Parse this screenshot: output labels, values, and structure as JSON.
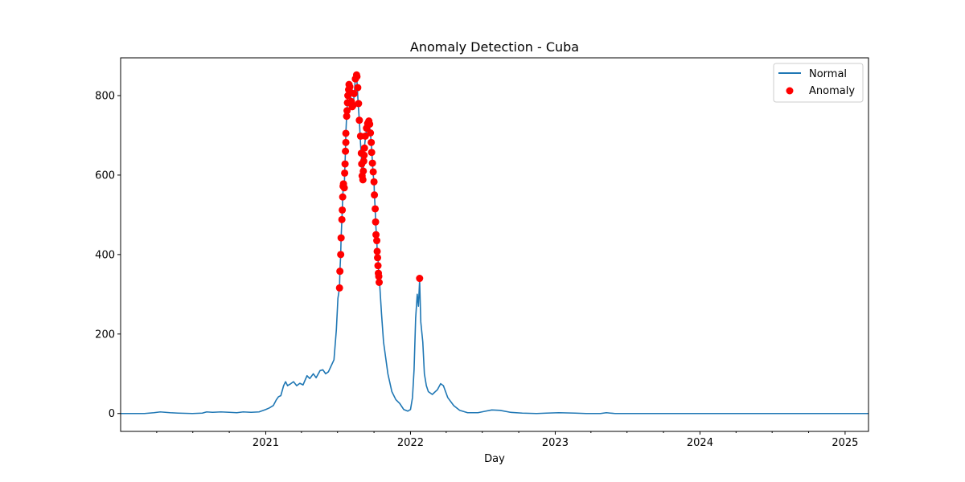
{
  "chart_data": {
    "type": "line",
    "title": "Anomaly Detection - Cuba",
    "xlabel": "Day",
    "ylabel": "",
    "xlim": [
      "2020-01-01",
      "2025-03-01"
    ],
    "ylim": [
      -45,
      895
    ],
    "x_ticks": [
      {
        "date": "2021-01-01",
        "label": "2021"
      },
      {
        "date": "2022-01-01",
        "label": "2022"
      },
      {
        "date": "2023-01-01",
        "label": "2023"
      },
      {
        "date": "2024-01-01",
        "label": "2024"
      },
      {
        "date": "2025-01-01",
        "label": "2025"
      }
    ],
    "x_minor_ticks": [
      "2020-04-01",
      "2020-07-01",
      "2020-10-01",
      "2021-04-01",
      "2021-07-01",
      "2021-10-01",
      "2022-04-01",
      "2022-07-01",
      "2022-10-01",
      "2023-04-01",
      "2023-07-01",
      "2023-10-01",
      "2024-04-01",
      "2024-07-01",
      "2024-10-01"
    ],
    "y_ticks": [
      0,
      200,
      400,
      600,
      800
    ],
    "legend": {
      "position": "top-right",
      "entries": [
        "Normal",
        "Anomaly"
      ]
    },
    "colors": {
      "normal": "#1f77b4",
      "anomaly": "#ff0000"
    },
    "series": [
      {
        "name": "Normal",
        "kind": "line",
        "points": [
          [
            "2020-01-01",
            0
          ],
          [
            "2020-03-01",
            0
          ],
          [
            "2020-03-25",
            2
          ],
          [
            "2020-04-10",
            4
          ],
          [
            "2020-05-05",
            2
          ],
          [
            "2020-05-25",
            1
          ],
          [
            "2020-06-30",
            0
          ],
          [
            "2020-07-25",
            1
          ],
          [
            "2020-08-05",
            4
          ],
          [
            "2020-08-20",
            3
          ],
          [
            "2020-09-10",
            4
          ],
          [
            "2020-10-01",
            3
          ],
          [
            "2020-10-20",
            2
          ],
          [
            "2020-11-05",
            4
          ],
          [
            "2020-11-25",
            3
          ],
          [
            "2020-12-15",
            4
          ],
          [
            "2021-01-01",
            10
          ],
          [
            "2021-01-10",
            14
          ],
          [
            "2021-01-20",
            20
          ],
          [
            "2021-01-28",
            35
          ],
          [
            "2021-02-02",
            42
          ],
          [
            "2021-02-08",
            45
          ],
          [
            "2021-02-15",
            70
          ],
          [
            "2021-02-20",
            80
          ],
          [
            "2021-02-25",
            70
          ],
          [
            "2021-03-05",
            75
          ],
          [
            "2021-03-12",
            80
          ],
          [
            "2021-03-20",
            70
          ],
          [
            "2021-03-28",
            76
          ],
          [
            "2021-04-05",
            72
          ],
          [
            "2021-04-15",
            95
          ],
          [
            "2021-04-22",
            88
          ],
          [
            "2021-05-01",
            100
          ],
          [
            "2021-05-08",
            90
          ],
          [
            "2021-05-18",
            108
          ],
          [
            "2021-05-25",
            110
          ],
          [
            "2021-06-01",
            100
          ],
          [
            "2021-06-08",
            105
          ],
          [
            "2021-06-15",
            120
          ],
          [
            "2021-06-22",
            135
          ],
          [
            "2021-06-28",
            210
          ],
          [
            "2021-07-02",
            290
          ],
          [
            "2021-07-06",
            316
          ],
          [
            "2021-07-07",
            358
          ],
          [
            "2021-07-09",
            400
          ],
          [
            "2021-07-10",
            442
          ],
          [
            "2021-07-12",
            488
          ],
          [
            "2021-07-13",
            512
          ],
          [
            "2021-07-14",
            545
          ],
          [
            "2021-07-16",
            578
          ],
          [
            "2021-07-18",
            565
          ],
          [
            "2021-07-19",
            605
          ],
          [
            "2021-07-21",
            660
          ],
          [
            "2021-07-22",
            705
          ],
          [
            "2021-07-24",
            750
          ],
          [
            "2021-07-27",
            800
          ],
          [
            "2021-07-30",
            828
          ],
          [
            "2021-08-02",
            815
          ],
          [
            "2021-08-05",
            780
          ],
          [
            "2021-08-08",
            770
          ],
          [
            "2021-08-12",
            800
          ],
          [
            "2021-08-15",
            845
          ],
          [
            "2021-08-18",
            852
          ],
          [
            "2021-08-20",
            820
          ],
          [
            "2021-08-22",
            780
          ],
          [
            "2021-08-25",
            738
          ],
          [
            "2021-08-28",
            680
          ],
          [
            "2021-08-31",
            630
          ],
          [
            "2021-09-01",
            600
          ],
          [
            "2021-09-03",
            588
          ],
          [
            "2021-09-05",
            630
          ],
          [
            "2021-09-07",
            672
          ],
          [
            "2021-09-10",
            700
          ],
          [
            "2021-09-13",
            720
          ],
          [
            "2021-09-16",
            735
          ],
          [
            "2021-09-19",
            730
          ],
          [
            "2021-09-22",
            705
          ],
          [
            "2021-09-24",
            680
          ],
          [
            "2021-09-26",
            650
          ],
          [
            "2021-09-27",
            630
          ],
          [
            "2021-09-29",
            600
          ],
          [
            "2021-10-01",
            585
          ],
          [
            "2021-10-02",
            550
          ],
          [
            "2021-10-04",
            515
          ],
          [
            "2021-10-05",
            482
          ],
          [
            "2021-10-07",
            450
          ],
          [
            "2021-10-08",
            435
          ],
          [
            "2021-10-09",
            410
          ],
          [
            "2021-10-11",
            395
          ],
          [
            "2021-10-12",
            375
          ],
          [
            "2021-10-13",
            355
          ],
          [
            "2021-10-15",
            330
          ],
          [
            "2021-10-20",
            250
          ],
          [
            "2021-10-25",
            180
          ],
          [
            "2021-11-05",
            100
          ],
          [
            "2021-11-15",
            55
          ],
          [
            "2021-11-25",
            35
          ],
          [
            "2021-12-05",
            25
          ],
          [
            "2021-12-15",
            10
          ],
          [
            "2021-12-25",
            6
          ],
          [
            "2022-01-01",
            10
          ],
          [
            "2022-01-06",
            40
          ],
          [
            "2022-01-10",
            110
          ],
          [
            "2022-01-14",
            240
          ],
          [
            "2022-01-18",
            300
          ],
          [
            "2022-01-21",
            270
          ],
          [
            "2022-01-24",
            335
          ],
          [
            "2022-01-27",
            230
          ],
          [
            "2022-02-01",
            180
          ],
          [
            "2022-02-05",
            100
          ],
          [
            "2022-02-10",
            70
          ],
          [
            "2022-02-15",
            55
          ],
          [
            "2022-02-25",
            48
          ],
          [
            "2022-03-10",
            60
          ],
          [
            "2022-03-18",
            75
          ],
          [
            "2022-03-25",
            70
          ],
          [
            "2022-04-05",
            40
          ],
          [
            "2022-04-20",
            20
          ],
          [
            "2022-05-05",
            8
          ],
          [
            "2022-05-25",
            2
          ],
          [
            "2022-06-20",
            2
          ],
          [
            "2022-07-10",
            6
          ],
          [
            "2022-07-25",
            9
          ],
          [
            "2022-08-15",
            8
          ],
          [
            "2022-09-10",
            3
          ],
          [
            "2022-10-10",
            1
          ],
          [
            "2022-11-15",
            0
          ],
          [
            "2022-12-10",
            1
          ],
          [
            "2023-01-10",
            2
          ],
          [
            "2023-02-20",
            1
          ],
          [
            "2023-03-20",
            0
          ],
          [
            "2023-04-25",
            0
          ],
          [
            "2023-05-10",
            2
          ],
          [
            "2023-05-20",
            1
          ],
          [
            "2023-06-01",
            0
          ],
          [
            "2025-03-01",
            0
          ]
        ]
      },
      {
        "name": "Anomaly",
        "kind": "scatter",
        "points": [
          [
            "2021-07-06",
            316
          ],
          [
            "2021-07-07",
            358
          ],
          [
            "2021-07-09",
            400
          ],
          [
            "2021-07-10",
            442
          ],
          [
            "2021-07-12",
            488
          ],
          [
            "2021-07-13",
            512
          ],
          [
            "2021-07-14",
            545
          ],
          [
            "2021-07-15",
            572
          ],
          [
            "2021-07-16",
            578
          ],
          [
            "2021-07-18",
            568
          ],
          [
            "2021-07-19",
            605
          ],
          [
            "2021-07-20",
            628
          ],
          [
            "2021-07-21",
            660
          ],
          [
            "2021-07-22",
            682
          ],
          [
            "2021-07-22",
            705
          ],
          [
            "2021-07-24",
            748
          ],
          [
            "2021-07-25",
            762
          ],
          [
            "2021-07-26",
            782
          ],
          [
            "2021-07-27",
            800
          ],
          [
            "2021-07-29",
            815
          ],
          [
            "2021-07-30",
            828
          ],
          [
            "2021-08-01",
            822
          ],
          [
            "2021-08-03",
            808
          ],
          [
            "2021-08-05",
            785
          ],
          [
            "2021-08-07",
            772
          ],
          [
            "2021-08-09",
            775
          ],
          [
            "2021-08-12",
            805
          ],
          [
            "2021-08-15",
            842
          ],
          [
            "2021-08-18",
            852
          ],
          [
            "2021-08-19",
            848
          ],
          [
            "2021-08-21",
            820
          ],
          [
            "2021-08-23",
            780
          ],
          [
            "2021-08-25",
            738
          ],
          [
            "2021-08-28",
            698
          ],
          [
            "2021-08-30",
            655
          ],
          [
            "2021-08-31",
            628
          ],
          [
            "2021-09-01",
            598
          ],
          [
            "2021-09-03",
            588
          ],
          [
            "2021-09-04",
            610
          ],
          [
            "2021-09-05",
            635
          ],
          [
            "2021-09-06",
            650
          ],
          [
            "2021-09-07",
            668
          ],
          [
            "2021-09-09",
            698
          ],
          [
            "2021-09-12",
            718
          ],
          [
            "2021-09-15",
            730
          ],
          [
            "2021-09-18",
            736
          ],
          [
            "2021-09-20",
            728
          ],
          [
            "2021-09-22",
            706
          ],
          [
            "2021-09-24",
            682
          ],
          [
            "2021-09-25",
            657
          ],
          [
            "2021-09-27",
            630
          ],
          [
            "2021-09-29",
            608
          ],
          [
            "2021-10-01",
            583
          ],
          [
            "2021-10-02",
            550
          ],
          [
            "2021-10-04",
            515
          ],
          [
            "2021-10-05",
            482
          ],
          [
            "2021-10-06",
            450
          ],
          [
            "2021-10-08",
            435
          ],
          [
            "2021-10-09",
            408
          ],
          [
            "2021-10-10",
            392
          ],
          [
            "2021-10-11",
            372
          ],
          [
            "2021-10-12",
            353
          ],
          [
            "2021-10-13",
            345
          ],
          [
            "2021-10-14",
            330
          ],
          [
            "2022-01-24",
            340
          ]
        ]
      }
    ]
  }
}
